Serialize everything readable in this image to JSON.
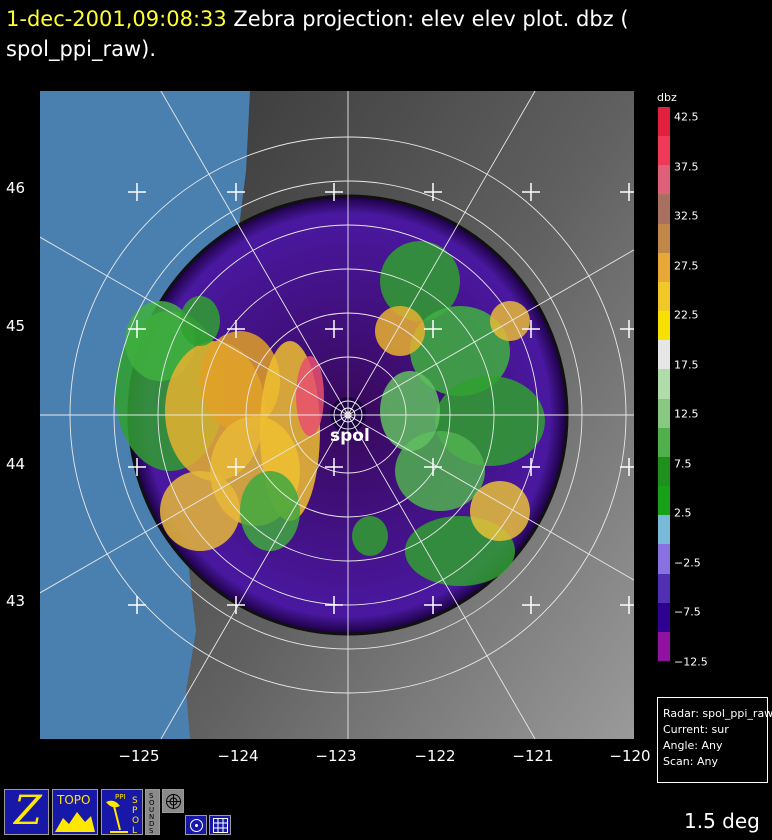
{
  "header": {
    "timestamp": "1-dec-2001,09:08:33",
    "title_rest": " Zebra projection: elev elev  plot.  dbz (",
    "title_line2": "spol_ppi_raw)."
  },
  "plot": {
    "radar_label": "spol",
    "lat_labels": [
      "46",
      "45",
      "44",
      "43"
    ],
    "lon_labels": [
      "−125",
      "−124",
      "−123",
      "−122",
      "−121",
      "−120"
    ]
  },
  "legend": {
    "title": "dbz",
    "ticks": [
      "42.5",
      "37.5",
      "32.5",
      "27.5",
      "22.5",
      "17.5",
      "12.5",
      "7.5",
      "2.5",
      "−2.5",
      "−7.5",
      "−12.5"
    ],
    "colors": [
      "#e0203c",
      "#f03858",
      "#e0607a",
      "#a87060",
      "#c08848",
      "#e8a838",
      "#f0c828",
      "#f8e000",
      "#e6e6e6",
      "#b0dcaa",
      "#88c882",
      "#50b04c",
      "#20901c",
      "#18a018",
      "#78b8d8",
      "#8870e0",
      "#5030b0",
      "#300090",
      "#9010a0"
    ]
  },
  "info_box": {
    "radar": "Radar: spol_ppi_raw",
    "current": "Current: sur",
    "angle": "Angle: Any",
    "scan": "Scan: Any"
  },
  "status": {
    "elevation": "1.5 deg"
  },
  "icon_bar": {
    "zebra_label": "Z",
    "topo_label": "TOPO",
    "ppi_label": "PPI",
    "spol_label": "SPOL",
    "sounds_label": "SOUNDS"
  },
  "colors": {
    "ocean": "#4a80b0",
    "timestamp": "#ffff30",
    "icon_bg": "#1818a8",
    "icon_fg": "#ffe800"
  }
}
